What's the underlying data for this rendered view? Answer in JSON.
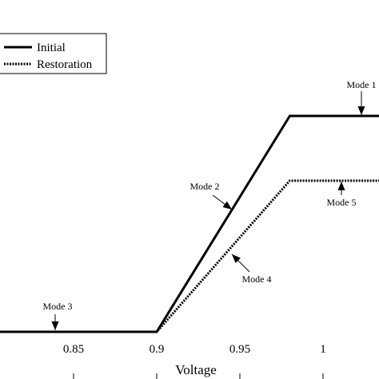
{
  "chart_data": {
    "type": "line",
    "xlabel": "Voltage",
    "ylabel": "",
    "title": "",
    "xlim": [
      0.8,
      1.035
    ],
    "ylim": [
      0,
      1
    ],
    "xticks": [
      {
        "v": 0.85,
        "label": "0.85"
      },
      {
        "v": 0.9,
        "label": "0.9"
      },
      {
        "v": 0.95,
        "label": "0.95"
      },
      {
        "v": 1.0,
        "label": "1"
      }
    ],
    "legend_position": "top-left",
    "series": [
      {
        "name": "Initial",
        "style": "solid",
        "color": "#000000",
        "x": [
          0.8,
          0.9,
          0.98,
          1.035
        ],
        "y": [
          0,
          0,
          1,
          1
        ]
      },
      {
        "name": "Restoration",
        "style": "dotted",
        "color": "#000000",
        "x": [
          0.8,
          0.9,
          0.98,
          1.035
        ],
        "y": [
          0,
          0,
          0.7,
          0.7
        ]
      }
    ],
    "annotations": [
      {
        "text": "Mode 1",
        "x": 1.025,
        "y": 1.0
      },
      {
        "text": "Mode 2",
        "x": 0.944,
        "y": 0.59
      },
      {
        "text": "Mode 3",
        "x": 0.84,
        "y": 0.0
      },
      {
        "text": "Mode 4",
        "x": 0.946,
        "y": 0.39
      },
      {
        "text": "Mode 5",
        "x": 1.005,
        "y": 0.7
      }
    ]
  }
}
